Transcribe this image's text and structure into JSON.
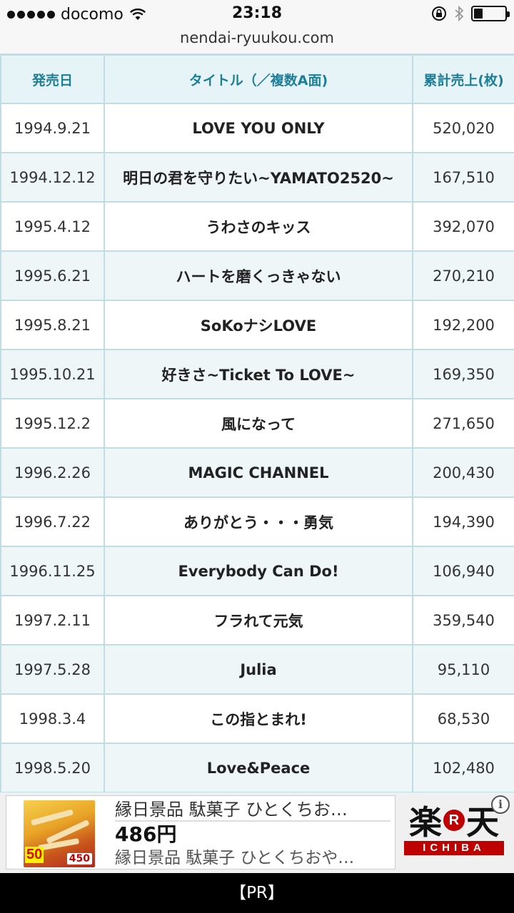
{
  "status_bar": {
    "carrier": "docomo",
    "time": "23:18",
    "battery_level": 0.25
  },
  "browser": {
    "url": "nendai-ryuukou.com"
  },
  "table": {
    "headers": [
      "発売日",
      "タイトル（／複数A面)",
      "累計売上(枚)"
    ],
    "rows": [
      {
        "date": "1994.9.21",
        "title": "LOVE YOU ONLY",
        "sales": "520,020"
      },
      {
        "date": "1994.12.12",
        "title": "明日の君を守りたい~YAMATO2520~",
        "sales": "167,510"
      },
      {
        "date": "1995.4.12",
        "title": "うわさのキッス",
        "sales": "392,070"
      },
      {
        "date": "1995.6.21",
        "title": "ハートを磨くっきゃない",
        "sales": "270,210"
      },
      {
        "date": "1995.8.21",
        "title": "SoKoナシLOVE",
        "sales": "192,200"
      },
      {
        "date": "1995.10.21",
        "title": "好きさ~Ticket To LOVE~",
        "sales": "169,350"
      },
      {
        "date": "1995.12.2",
        "title": "風になって",
        "sales": "271,650"
      },
      {
        "date": "1996.2.26",
        "title": "MAGIC CHANNEL",
        "sales": "200,430"
      },
      {
        "date": "1996.7.22",
        "title": "ありがとう・・・勇気",
        "sales": "194,390"
      },
      {
        "date": "1996.11.25",
        "title": "Everybody Can Do!",
        "sales": "106,940"
      },
      {
        "date": "1997.2.11",
        "title": "フラれて元気",
        "sales": "359,540"
      },
      {
        "date": "1997.5.28",
        "title": "Julia",
        "sales": "95,110"
      },
      {
        "date": "1998.3.4",
        "title": "この指とまれ!",
        "sales": "68,530"
      },
      {
        "date": "1998.5.20",
        "title": "Love&Peace",
        "sales": "102,480"
      }
    ]
  },
  "ad": {
    "title": "縁日景品 駄菓子 ひとくちお…",
    "price": "486円",
    "description": "縁日景品 駄菓子 ひとくちおや…",
    "image_badge": "50",
    "image_price": "450",
    "brand_main": "楽天",
    "brand_r": "R",
    "brand_sub": "ICHIBA",
    "info_icon": "i"
  },
  "bottom_bar": {
    "label": "【PR】"
  }
}
